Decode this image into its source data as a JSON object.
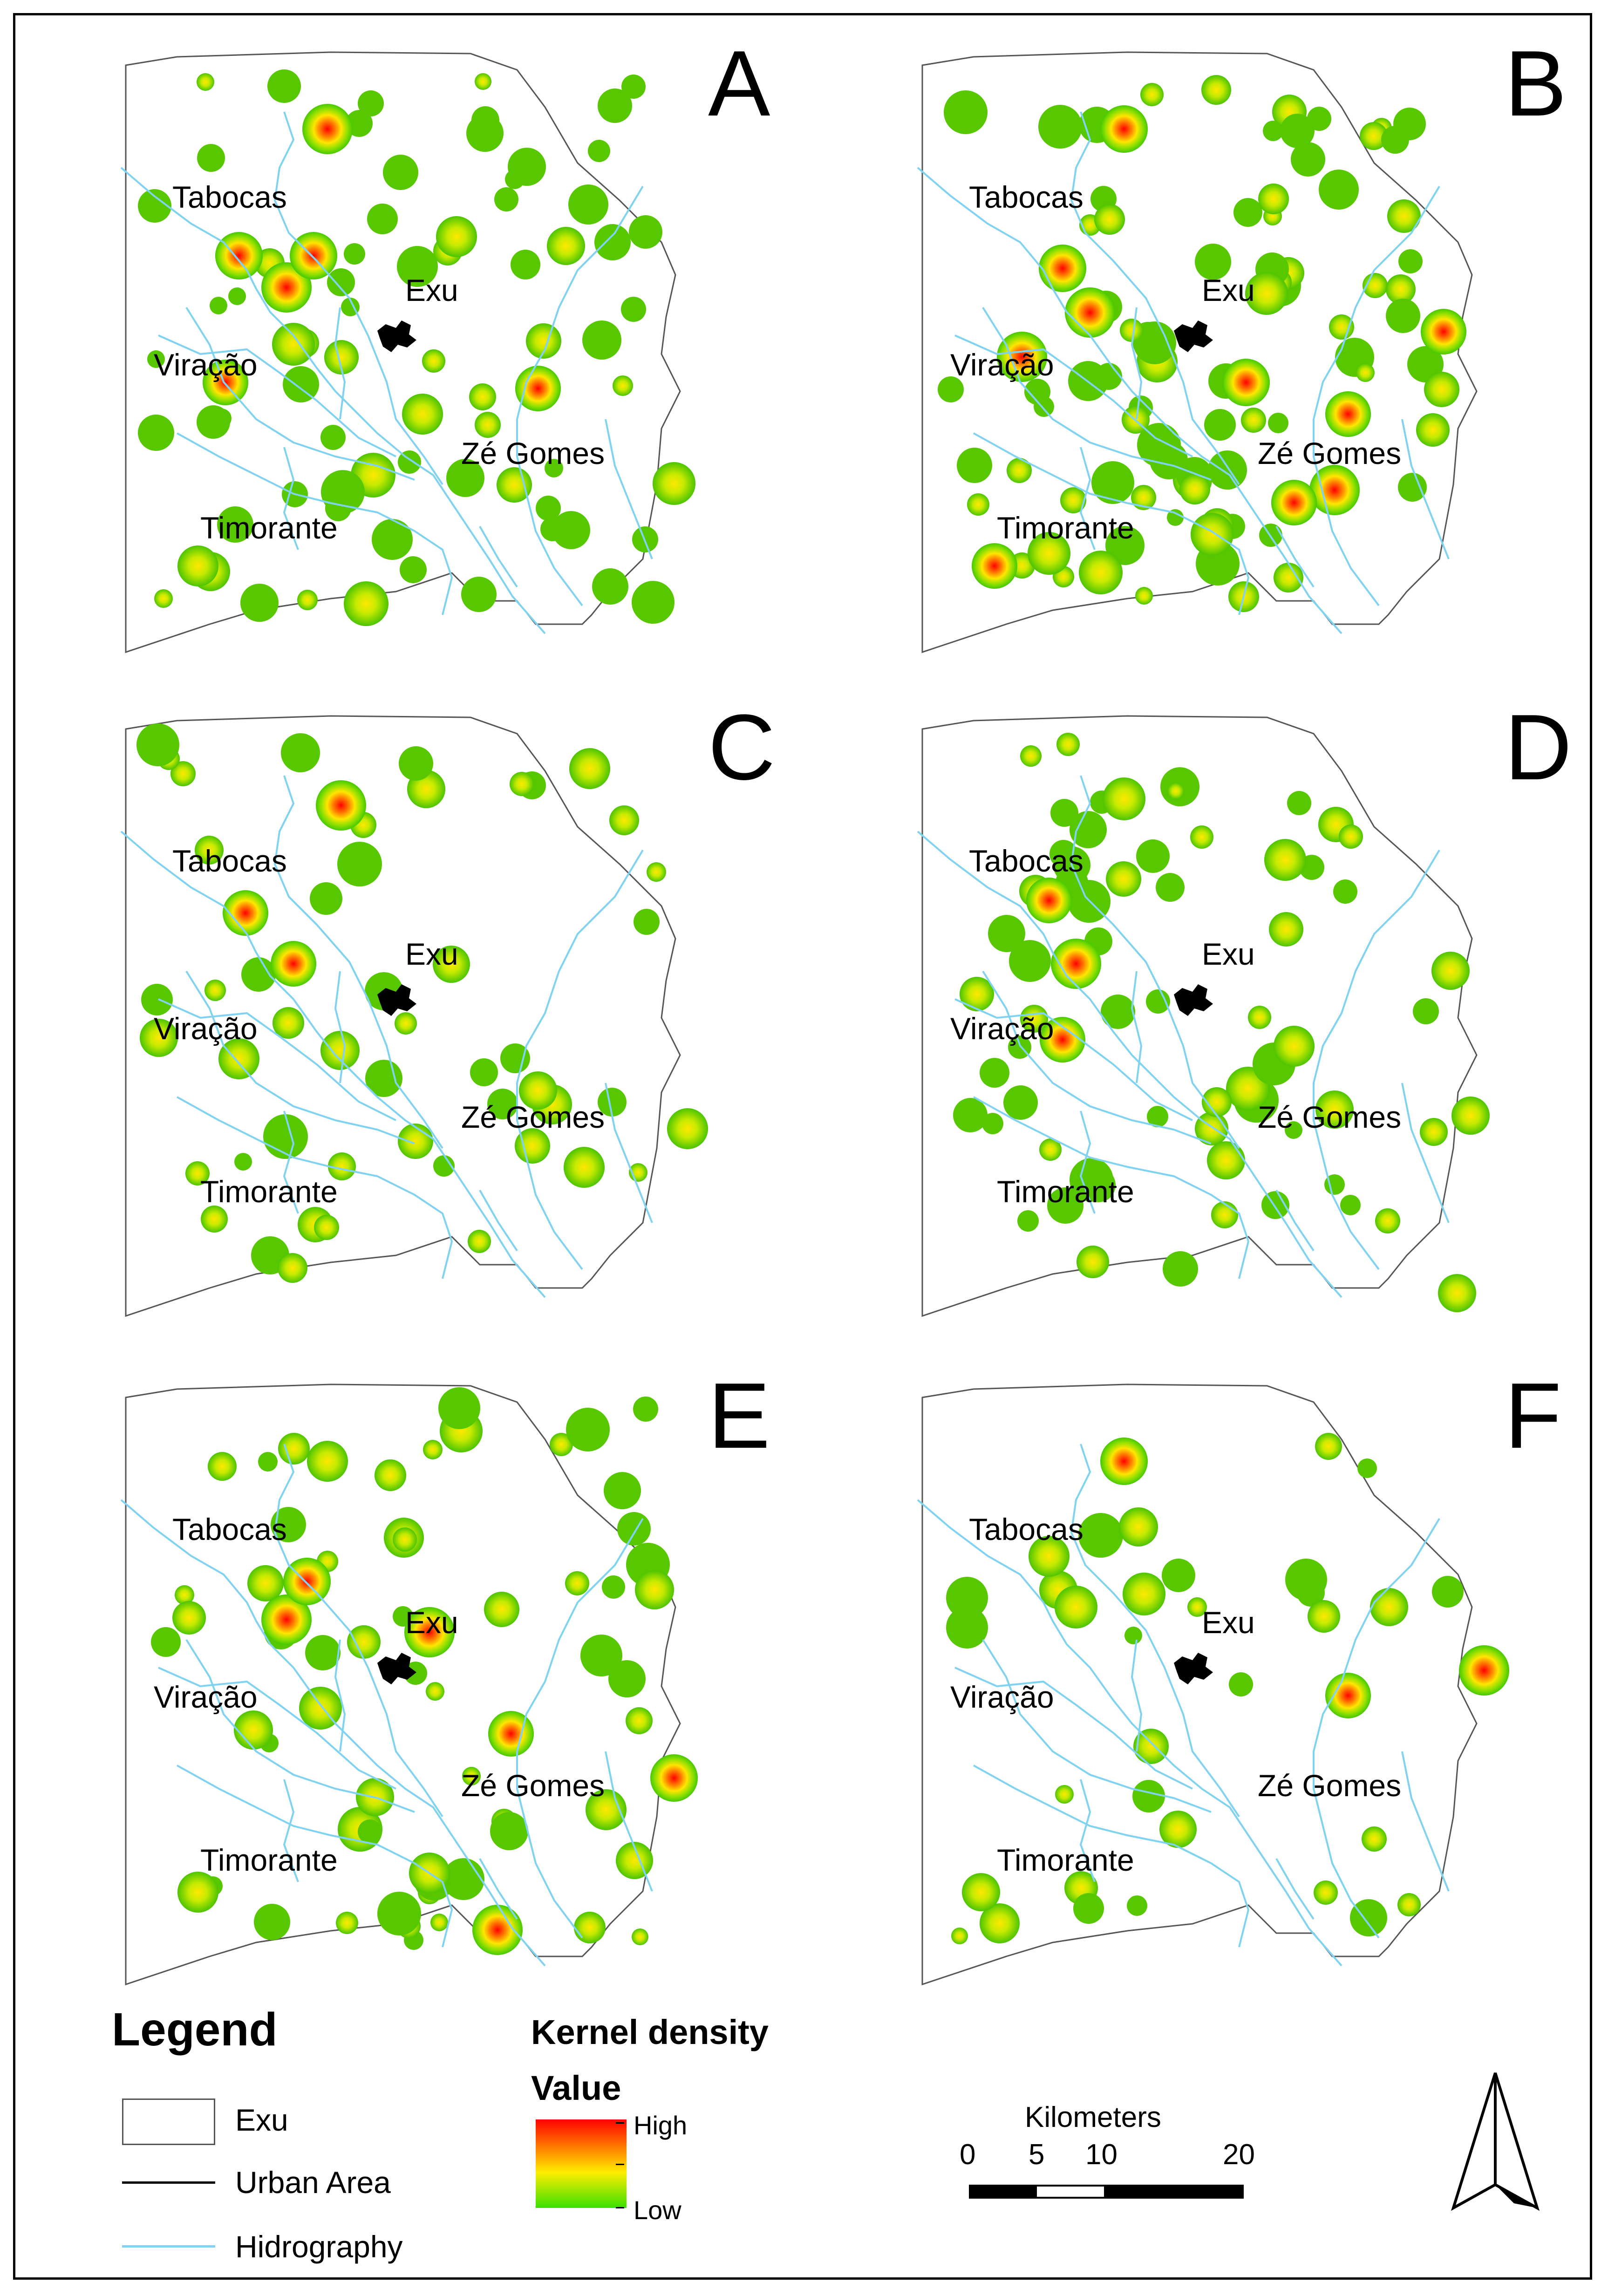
{
  "panels": [
    {
      "letter": "A",
      "hot": [
        [
          0.31,
          0.13,
          1.0
        ],
        [
          0.18,
          0.33,
          0.9
        ],
        [
          0.25,
          0.38,
          1.0
        ],
        [
          0.29,
          0.33,
          0.9
        ],
        [
          0.26,
          0.47,
          0.7
        ],
        [
          0.16,
          0.53,
          0.8
        ],
        [
          0.62,
          0.54,
          0.8
        ],
        [
          0.82,
          0.69,
          0.7
        ],
        [
          0.45,
          0.58,
          0.6
        ],
        [
          0.12,
          0.82,
          0.6
        ],
        [
          0.5,
          0.3,
          0.6
        ]
      ]
    },
    {
      "letter": "B",
      "hot": [
        [
          0.31,
          0.13,
          0.9
        ],
        [
          0.16,
          0.49,
          1.0
        ],
        [
          0.22,
          0.35,
          0.9
        ],
        [
          0.26,
          0.42,
          1.0
        ],
        [
          0.49,
          0.53,
          0.9
        ],
        [
          0.64,
          0.58,
          0.8
        ],
        [
          0.62,
          0.7,
          1.0
        ],
        [
          0.56,
          0.72,
          0.8
        ],
        [
          0.12,
          0.82,
          0.8
        ],
        [
          0.2,
          0.8,
          0.7
        ],
        [
          0.44,
          0.77,
          0.7
        ],
        [
          0.78,
          0.45,
          0.8
        ],
        [
          0.52,
          0.39,
          0.7
        ]
      ]
    },
    {
      "letter": "C",
      "hot": [
        [
          0.33,
          0.15,
          1.0
        ],
        [
          0.19,
          0.32,
          0.8
        ],
        [
          0.26,
          0.4,
          0.8
        ],
        [
          0.18,
          0.55,
          0.6
        ],
        [
          0.84,
          0.66,
          0.6
        ],
        [
          0.62,
          0.6,
          0.5
        ],
        [
          0.44,
          0.68,
          0.4
        ]
      ]
    },
    {
      "letter": "D",
      "hot": [
        [
          0.31,
          0.14,
          0.7
        ],
        [
          0.2,
          0.3,
          0.8
        ],
        [
          0.24,
          0.4,
          1.0
        ],
        [
          0.22,
          0.52,
          0.8
        ],
        [
          0.56,
          0.53,
          0.6
        ],
        [
          0.62,
          0.63,
          0.5
        ],
        [
          0.46,
          0.71,
          0.5
        ],
        [
          0.82,
          0.64,
          0.5
        ],
        [
          0.8,
          0.92,
          0.5
        ]
      ]
    },
    {
      "letter": "E",
      "hot": [
        [
          0.31,
          0.13,
          0.6
        ],
        [
          0.25,
          0.38,
          1.0
        ],
        [
          0.28,
          0.32,
          0.9
        ],
        [
          0.46,
          0.4,
          1.0
        ],
        [
          0.3,
          0.52,
          0.7
        ],
        [
          0.58,
          0.56,
          0.8
        ],
        [
          0.82,
          0.63,
          0.9
        ],
        [
          0.72,
          0.68,
          0.6
        ],
        [
          0.46,
          0.78,
          0.6
        ],
        [
          0.12,
          0.81,
          0.6
        ],
        [
          0.56,
          0.87,
          1.0
        ],
        [
          0.38,
          0.66,
          0.5
        ]
      ]
    },
    {
      "letter": "F",
      "hot": [
        [
          0.31,
          0.13,
          0.9
        ],
        [
          0.2,
          0.28,
          0.6
        ],
        [
          0.24,
          0.36,
          0.7
        ],
        [
          0.34,
          0.34,
          0.7
        ],
        [
          0.64,
          0.5,
          0.8
        ],
        [
          0.84,
          0.46,
          1.0
        ],
        [
          0.7,
          0.36,
          0.5
        ],
        [
          0.1,
          0.81,
          0.5
        ],
        [
          0.35,
          0.58,
          0.4
        ]
      ]
    }
  ],
  "places": {
    "tabocas": "Tabocas",
    "exu": "Exu",
    "viracao": "Viração",
    "ze_gomes": "Zé Gomes",
    "timorante": "Timorante"
  },
  "legend": {
    "title": "Legend",
    "items": {
      "exu": "Exu",
      "urban": "Urban Area",
      "hydro": "Hidrography"
    },
    "kernel_title": "Kernel density",
    "value_label": "Value",
    "high": "High",
    "low": "Low",
    "colors": {
      "boundary": "#555555",
      "urban": "#000000",
      "hydro": "#7fd3f0",
      "high": "#ff0000",
      "low": "#3ae000"
    }
  },
  "scale": {
    "title": "Kilometers",
    "ticks": [
      "0",
      "5",
      "10",
      "20"
    ]
  }
}
